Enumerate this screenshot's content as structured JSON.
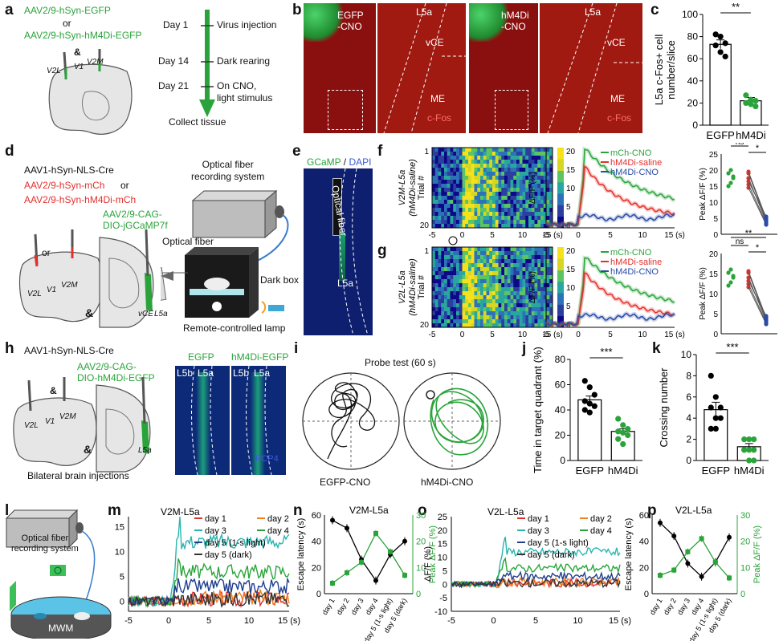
{
  "panel_labels": [
    "a",
    "b",
    "c",
    "d",
    "e",
    "f",
    "g",
    "h",
    "i",
    "j",
    "k",
    "l",
    "m",
    "n",
    "o",
    "p"
  ],
  "a": {
    "virus1": "AAV2/9-hSyn-EGFP",
    "or": "or",
    "virus2": "AAV2/9-hSyn-hM4Di-EGFP",
    "amp": "&",
    "regions": [
      "V2L",
      "V1",
      "V2M"
    ],
    "timeline": [
      {
        "day": "Day 1",
        "event": "Virus injection"
      },
      {
        "day": "Day 14",
        "event": "Dark rearing"
      },
      {
        "day": "Day 21",
        "event": "On CNO,\nlight stimulus"
      }
    ],
    "end": "Collect tissue"
  },
  "b": {
    "img1": "EGFP\n-CNO",
    "img3": "hM4Di\n-CNO",
    "l5a": "L5a",
    "vce": "vCE",
    "me": "ME",
    "cfos": "c-Fos"
  },
  "c": {
    "ylabel": "L5a c-Fos+ cell\nnumber/slice",
    "sig": "**",
    "chart_data": {
      "type": "bar",
      "categories": [
        "EGFP",
        "hM4Di"
      ],
      "values": [
        73,
        22
      ],
      "errors": [
        4,
        3
      ],
      "points": [
        [
          82,
          80,
          74,
          72,
          66,
          62
        ],
        [
          27,
          23,
          22,
          20,
          19,
          17
        ]
      ],
      "ylim": [
        0,
        100
      ],
      "yticks": [
        0,
        20,
        40,
        60,
        80,
        100
      ]
    }
  },
  "d": {
    "v1": "AAV1-hSyn-NLS-Cre",
    "v2": "AAV2/9-hSyn-mCh",
    "v2or": "or",
    "v3": "AAV2/9-hSyn-hM4Di-mCh",
    "v4": "AAV2/9-CAG-\nDIO-jGCaMP7f",
    "fiber_system": "Optical fiber\nrecording system",
    "fiber": "Optical fiber",
    "dark_box": "Dark box",
    "lamp": "Remote-controlled lamp",
    "or": "or",
    "amp": "&",
    "regions": [
      "V2L",
      "V1",
      "V2M"
    ],
    "vce": "vCE",
    "l5a": "L5a"
  },
  "e": {
    "title_a": "GCaMP",
    "slash": " / ",
    "title_b": "DAPI",
    "fiber": "Optical fiber",
    "l5a": "L5a"
  },
  "f": {
    "ylabel": "V2M-L5a\n(hM4Di-saline)",
    "trial": "Trial #",
    "trial_ticks": [
      "1",
      "20"
    ],
    "xticks": [
      "-5",
      "0",
      "5",
      "10",
      "15 (s)"
    ],
    "cbar": [
      "20",
      "15",
      "10",
      "5",
      "0"
    ],
    "dff": "ΔF/F (%)",
    "dff_ticks": [
      "20",
      "15",
      "10",
      "5",
      "0"
    ],
    "legend": [
      "mCh-CNO",
      "hM4Di-saline",
      "hM4Di-CNO"
    ],
    "peak_label": "Peak ΔF/F (%)",
    "peak_ticks": [
      "25",
      "20",
      "15",
      "10",
      "5",
      "0"
    ],
    "sig": [
      "**",
      "ns",
      "*"
    ]
  },
  "g": {
    "ylabel": "V2L-L5a\n(hM4Di-saline)",
    "trial": "Trial #",
    "trial_ticks": [
      "1",
      "20"
    ],
    "xticks": [
      "-5",
      "0",
      "5",
      "10",
      "15 (s)"
    ],
    "cbar": [
      "20",
      "15",
      "10",
      "5",
      "0"
    ],
    "dff": "ΔF/F (%)",
    "dff_ticks": [
      "20",
      "15",
      "10",
      "5",
      "0"
    ],
    "legend": [
      "mCh-CNO",
      "hM4Di-saline",
      "hM4Di-CNO"
    ],
    "peak_label": "Peak ΔF/F (%)",
    "peak_ticks": [
      "20",
      "15",
      "10",
      "5",
      "0"
    ],
    "sig": [
      "**",
      "ns",
      "*"
    ]
  },
  "h": {
    "v1": "AAV1-hSyn-NLS-Cre",
    "v2": "AAV2/9-CAG-\nDIO-hM4Di-EGFP",
    "amp": "&",
    "regions": [
      "V2L",
      "V1",
      "V2M"
    ],
    "l5a": "L5a",
    "caption": "Bilateral brain injections",
    "img_titles": [
      "EGFP",
      "hM4Di-EGFP"
    ],
    "layers": [
      "L5b",
      "L5a"
    ],
    "pcp4": "PCP4"
  },
  "i": {
    "title": "Probe test (60 s)",
    "labels": [
      "EGFP-CNO",
      "hM4Di-CNO"
    ]
  },
  "j": {
    "ylabel": "Time in target quadrant (%)",
    "sig": "***",
    "chart_data": {
      "type": "bar",
      "categories": [
        "EGFP",
        "hM4Di"
      ],
      "values": [
        48,
        23
      ],
      "errors": [
        3,
        2
      ],
      "points": [
        [
          63,
          58,
          52,
          47,
          45,
          43,
          40,
          38
        ],
        [
          33,
          28,
          25,
          23,
          22,
          20,
          17,
          13
        ]
      ],
      "ylim": [
        0,
        80
      ],
      "yticks": [
        0,
        20,
        40,
        60,
        80
      ]
    }
  },
  "k": {
    "ylabel": "Crossing number",
    "sig": "***",
    "chart_data": {
      "type": "bar",
      "categories": [
        "EGFP",
        "hM4Di"
      ],
      "values": [
        4.8,
        1.3
      ],
      "errors": [
        0.7,
        0.3
      ],
      "points": [
        [
          8,
          6,
          5,
          5,
          4,
          4,
          3,
          3
        ],
        [
          2,
          2,
          2,
          1,
          1,
          1,
          1,
          0,
          0
        ]
      ],
      "ylim": [
        0,
        10
      ],
      "yticks": [
        0,
        2,
        4,
        6,
        8,
        10
      ]
    }
  },
  "l": {
    "system": "Optical fiber\nrecording system",
    "mwm": "MWM"
  },
  "m": {
    "title": "V2M-L5a",
    "ylabel": "ΔF/F (%)",
    "yticks": [
      "15",
      "10",
      "5",
      "0"
    ],
    "xticks": [
      "-5",
      "0",
      "5",
      "10",
      "15 (s)"
    ],
    "legend": [
      "day 1",
      "day 2",
      "day 3",
      "day 4",
      "day 5 (1-s light)",
      "day 5 (dark)"
    ]
  },
  "n": {
    "title": "V2M-L5a",
    "ylabel_left": "Escape latency (s)",
    "ylabel_right": "Peak ΔF/F (%)",
    "left_ticks": [
      "0",
      "20",
      "40",
      "60"
    ],
    "right_ticks": [
      "0",
      "10",
      "20",
      "30"
    ],
    "chart_data": {
      "type": "line",
      "categories": [
        "day 1",
        "day 2",
        "day 3",
        "day 4",
        "day 5 (1-s light)",
        "day 5 (dark)"
      ],
      "series": [
        {
          "name": "Escape latency (s)",
          "values": [
            56,
            50,
            26,
            10,
            30,
            40
          ],
          "axis": "left"
        },
        {
          "name": "Peak ΔF/F (%)",
          "values": [
            4,
            8,
            12,
            23,
            16,
            7
          ],
          "axis": "right"
        }
      ],
      "ylim_left": [
        0,
        60
      ],
      "ylim_right": [
        0,
        30
      ]
    }
  },
  "o": {
    "title": "V2L-L5a",
    "ylabel": "ΔF/F (%)",
    "yticks": [
      "25",
      "20",
      "15",
      "10",
      "5",
      "0",
      "-5",
      "-10"
    ],
    "xticks": [
      "-5",
      "0",
      "5",
      "10",
      "15 (s)"
    ],
    "legend": [
      "day 1",
      "day 2",
      "day 3",
      "day 4",
      "day 5 (1-s light)",
      "day 5 (dark)"
    ]
  },
  "p": {
    "title": "V2L-L5a",
    "ylabel_left": "Escape latency (s)",
    "ylabel_right": "Peak ΔF/F (%)",
    "left_ticks": [
      "0",
      "20",
      "40",
      "60"
    ],
    "right_ticks": [
      "0",
      "10",
      "20",
      "30"
    ],
    "chart_data": {
      "type": "line",
      "categories": [
        "day 1",
        "day 2",
        "day 3",
        "day 4",
        "day 5 (1-s light)",
        "day 5 (dark)"
      ],
      "series": [
        {
          "name": "Escape latency (s)",
          "values": [
            54,
            44,
            23,
            13,
            24,
            43
          ],
          "axis": "left"
        },
        {
          "name": "Peak ΔF/F (%)",
          "values": [
            7,
            9,
            16,
            21,
            12,
            6
          ],
          "axis": "right"
        }
      ],
      "ylim_left": [
        0,
        60
      ],
      "ylim_right": [
        0,
        30
      ]
    }
  },
  "colors": {
    "green": "#2aa43a",
    "red": "#e2312d",
    "blue": "#2a4aa8",
    "orange": "#f07f22",
    "cyan": "#2bb5b0",
    "navy": "#1f3f8f",
    "dark": "#333333"
  }
}
